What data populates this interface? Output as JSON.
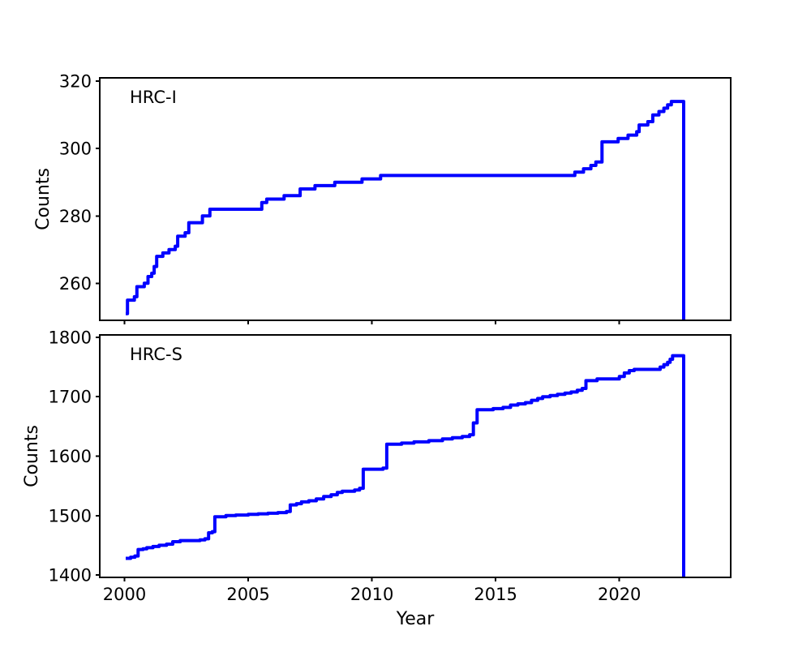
{
  "chart": {
    "xlabel": "Year",
    "xlim": [
      1999.0,
      2024.5
    ],
    "x_ticks": [
      2000,
      2005,
      2010,
      2015,
      2020
    ],
    "line_color": "#0000ff",
    "axis_color": "#000000",
    "background": "#ffffff"
  },
  "chart_data": [
    {
      "type": "line",
      "subtype": "cumulative-step",
      "label": "HRC-I",
      "ylabel": "Counts",
      "ylim": [
        249,
        321
      ],
      "y_ticks": [
        260,
        280,
        300,
        320
      ],
      "grid": false,
      "legend": "none",
      "x": [
        2000.05,
        2000.12,
        2000.4,
        2000.5,
        2000.8,
        2000.95,
        2001.1,
        2001.2,
        2001.3,
        2001.55,
        2001.8,
        2002.05,
        2002.15,
        2002.45,
        2002.6,
        2003.15,
        2003.45,
        2005.55,
        2005.75,
        2006.45,
        2007.1,
        2007.7,
        2008.5,
        2009.6,
        2010.35,
        2018.2,
        2018.55,
        2018.85,
        2019.05,
        2019.3,
        2019.95,
        2020.35,
        2020.7,
        2020.8,
        2021.15,
        2021.35,
        2021.6,
        2021.8,
        2021.95,
        2022.1
      ],
      "y": [
        251,
        255,
        256,
        259,
        260,
        262,
        263,
        265,
        268,
        269,
        270,
        271,
        274,
        275,
        278,
        280,
        282,
        284,
        285,
        286,
        288,
        289,
        290,
        291,
        292,
        293,
        294,
        295,
        296,
        302,
        303,
        304,
        305,
        307,
        308,
        310,
        311,
        312,
        313,
        314
      ],
      "end_drop_year": 2022.6
    },
    {
      "type": "line",
      "subtype": "cumulative-step",
      "label": "HRC-S",
      "ylabel": "Counts",
      "ylim": [
        1396,
        1804
      ],
      "y_ticks": [
        1400,
        1500,
        1600,
        1700,
        1800
      ],
      "grid": false,
      "legend": "none",
      "x": [
        2000.05,
        2000.25,
        2000.42,
        2000.55,
        2000.75,
        2000.9,
        2001.15,
        2001.4,
        2001.7,
        2001.95,
        2002.25,
        2003.05,
        2003.25,
        2003.4,
        2003.55,
        2003.65,
        2004.1,
        2004.5,
        2005.0,
        2005.4,
        2005.8,
        2006.2,
        2006.55,
        2006.7,
        2006.95,
        2007.15,
        2007.45,
        2007.75,
        2008.05,
        2008.35,
        2008.6,
        2008.8,
        2009.3,
        2009.5,
        2009.65,
        2010.45,
        2010.6,
        2011.2,
        2011.7,
        2012.3,
        2012.85,
        2013.25,
        2013.65,
        2013.95,
        2014.1,
        2014.25,
        2014.9,
        2015.3,
        2015.6,
        2015.9,
        2016.2,
        2016.45,
        2016.7,
        2016.9,
        2017.2,
        2017.5,
        2017.8,
        2018.05,
        2018.3,
        2018.5,
        2018.65,
        2019.1,
        2020.0,
        2020.2,
        2020.4,
        2020.6,
        2021.65,
        2021.8,
        2021.95,
        2022.05,
        2022.15
      ],
      "y": [
        1428,
        1430,
        1432,
        1443,
        1444,
        1446,
        1448,
        1450,
        1452,
        1456,
        1458,
        1459,
        1461,
        1471,
        1473,
        1498,
        1500,
        1501,
        1502,
        1503,
        1504,
        1505,
        1507,
        1518,
        1520,
        1523,
        1525,
        1528,
        1532,
        1535,
        1539,
        1541,
        1543,
        1546,
        1578,
        1580,
        1620,
        1622,
        1624,
        1626,
        1629,
        1631,
        1633,
        1636,
        1656,
        1678,
        1680,
        1682,
        1686,
        1688,
        1690,
        1694,
        1697,
        1700,
        1702,
        1704,
        1706,
        1708,
        1711,
        1714,
        1727,
        1730,
        1734,
        1740,
        1744,
        1746,
        1750,
        1754,
        1758,
        1763,
        1769
      ],
      "end_drop_year": 2022.6
    }
  ]
}
